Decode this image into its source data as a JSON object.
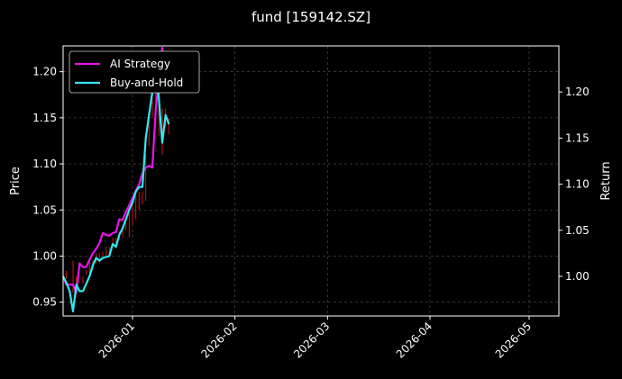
{
  "chart_data": {
    "type": "line",
    "title": "fund [159142.SZ]",
    "ylabel_left": "Price",
    "ylabel_right": "Return",
    "ylim_left": [
      0.935,
      1.228
    ],
    "ylim_right": [
      0.957,
      1.25
    ],
    "yticks_left": [
      "0.95",
      "1.00",
      "1.05",
      "1.10",
      "1.15",
      "1.20"
    ],
    "yticks_right": [
      "1.00",
      "1.05",
      "1.10",
      "1.15",
      "1.20"
    ],
    "x_range": [
      "2025-12-11",
      "2026-05-10"
    ],
    "xticks": [
      "2026-01",
      "2026-02",
      "2026-03",
      "2026-04",
      "2026-05"
    ],
    "grid": true,
    "legend_position": "top-left",
    "series": [
      {
        "name": "AI Strategy",
        "color": "#e815e8",
        "points": [
          [
            "2025-12-11",
            1.0
          ],
          [
            "2025-12-12",
            0.991
          ],
          [
            "2025-12-13",
            0.991
          ],
          [
            "2025-12-14",
            0.991
          ],
          [
            "2025-12-15",
            0.982
          ],
          [
            "2025-12-16",
            1.014
          ],
          [
            "2025-12-17",
            1.01
          ],
          [
            "2025-12-18",
            1.01
          ],
          [
            "2025-12-19",
            1.018
          ],
          [
            "2025-12-20",
            1.025
          ],
          [
            "2025-12-21",
            1.03
          ],
          [
            "2025-12-22",
            1.036
          ],
          [
            "2025-12-23",
            1.047
          ],
          [
            "2025-12-24",
            1.045
          ],
          [
            "2025-12-25",
            1.044
          ],
          [
            "2025-12-26",
            1.047
          ],
          [
            "2025-12-27",
            1.048
          ],
          [
            "2025-12-28",
            1.062
          ],
          [
            "2025-12-29",
            1.061
          ],
          [
            "2025-12-30",
            1.07
          ],
          [
            "2025-12-31",
            1.077
          ],
          [
            "2026-01-01",
            1.085
          ],
          [
            "2026-01-02",
            1.093
          ],
          [
            "2026-01-03",
            1.1
          ],
          [
            "2026-01-04",
            1.112
          ],
          [
            "2026-01-05",
            1.118
          ],
          [
            "2026-01-06",
            1.12
          ],
          [
            "2026-01-07",
            1.118
          ],
          [
            "2026-01-08",
            1.18
          ],
          [
            "2026-01-09",
            1.215
          ],
          [
            "2026-01-10",
            1.248
          ],
          [
            "2026-01-11",
            1.2
          ],
          [
            "2026-01-12",
            1.222
          ],
          [
            "2026-01-13",
            1.21
          ]
        ]
      },
      {
        "name": "Buy-and-Hold",
        "color": "#33e6ef",
        "points": [
          [
            "2025-12-11",
            1.0
          ],
          [
            "2025-12-12",
            0.993
          ],
          [
            "2025-12-13",
            0.984
          ],
          [
            "2025-12-14",
            0.962
          ],
          [
            "2025-12-15",
            0.991
          ],
          [
            "2025-12-16",
            0.984
          ],
          [
            "2025-12-17",
            0.984
          ],
          [
            "2025-12-18",
            0.992
          ],
          [
            "2025-12-19",
            1.0
          ],
          [
            "2025-12-20",
            1.012
          ],
          [
            "2025-12-21",
            1.02
          ],
          [
            "2025-12-22",
            1.017
          ],
          [
            "2025-12-23",
            1.02
          ],
          [
            "2025-12-24",
            1.021
          ],
          [
            "2025-12-25",
            1.022
          ],
          [
            "2025-12-26",
            1.035
          ],
          [
            "2025-12-27",
            1.032
          ],
          [
            "2025-12-28",
            1.045
          ],
          [
            "2025-12-29",
            1.052
          ],
          [
            "2025-12-30",
            1.062
          ],
          [
            "2025-12-31",
            1.072
          ],
          [
            "2026-01-01",
            1.08
          ],
          [
            "2026-01-02",
            1.092
          ],
          [
            "2026-01-03",
            1.097
          ],
          [
            "2026-01-04",
            1.097
          ],
          [
            "2026-01-05",
            1.15
          ],
          [
            "2026-01-06",
            1.175
          ],
          [
            "2026-01-07",
            1.2
          ],
          [
            "2026-01-08",
            1.235
          ],
          [
            "2026-01-09",
            1.192
          ],
          [
            "2026-01-10",
            1.145
          ],
          [
            "2026-01-11",
            1.175
          ],
          [
            "2026-01-12",
            1.165
          ]
        ]
      }
    ],
    "price_bars": {
      "color": "#d41414",
      "bars": [
        [
          "2025-12-11",
          0.985,
          0.996
        ],
        [
          "2025-12-12",
          0.975,
          0.984
        ],
        [
          "2025-12-14",
          0.96,
          0.995
        ],
        [
          "2025-12-15",
          0.955,
          0.978
        ],
        [
          "2025-12-17",
          0.97,
          0.978
        ],
        [
          "2025-12-18",
          0.98,
          0.985
        ],
        [
          "2025-12-19",
          0.982,
          0.995
        ],
        [
          "2025-12-20",
          0.985,
          0.995
        ],
        [
          "2025-12-21",
          0.992,
          1.003
        ],
        [
          "2025-12-22",
          0.993,
          1.003
        ],
        [
          "2025-12-23",
          1.0,
          1.005
        ],
        [
          "2025-12-24",
          1.0,
          1.01
        ],
        [
          "2025-12-25",
          1.002,
          1.01
        ],
        [
          "2025-12-26",
          1.01,
          1.02
        ],
        [
          "2025-12-27",
          1.013,
          1.02
        ],
        [
          "2025-12-28",
          1.018,
          1.027
        ],
        [
          "2025-12-29",
          1.02,
          1.033
        ],
        [
          "2025-12-30",
          1.028,
          1.038
        ],
        [
          "2025-12-31",
          1.02,
          1.046
        ],
        [
          "2026-01-01",
          1.034,
          1.058
        ],
        [
          "2026-01-02",
          1.04,
          1.065
        ],
        [
          "2026-01-03",
          1.05,
          1.07
        ],
        [
          "2026-01-04",
          1.056,
          1.07
        ],
        [
          "2026-01-05",
          1.06,
          1.11
        ],
        [
          "2026-01-06",
          1.12,
          1.15
        ],
        [
          "2026-01-07",
          1.15,
          1.21
        ],
        [
          "2026-01-08",
          1.16,
          1.21
        ],
        [
          "2026-01-09",
          1.13,
          1.2
        ],
        [
          "2026-01-10",
          1.11,
          1.16
        ],
        [
          "2026-01-11",
          1.14,
          1.16
        ],
        [
          "2026-01-12",
          1.132,
          1.15
        ]
      ]
    }
  }
}
